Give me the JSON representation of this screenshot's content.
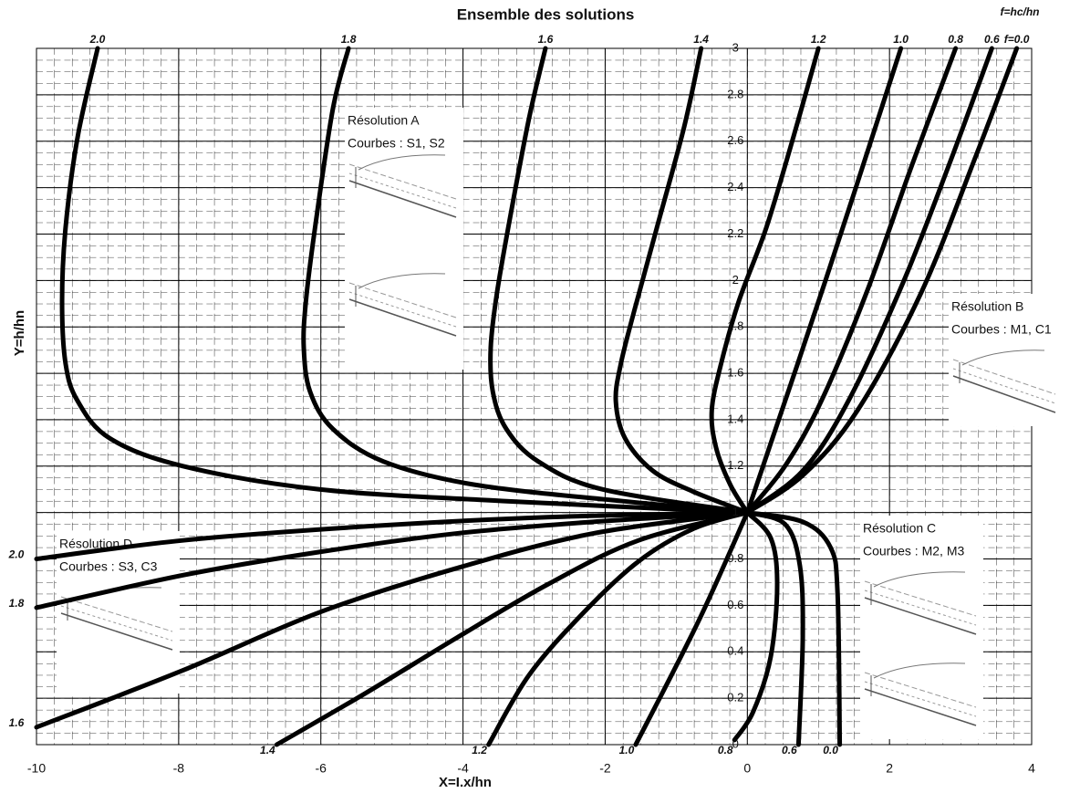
{
  "chart_data": {
    "type": "line",
    "title": "Ensemble des solutions",
    "x_label": "X=I.x/hn",
    "y_label": "Y=h/hn",
    "annotation": "f=hc/hn",
    "xlim": [
      -10,
      4
    ],
    "ylim": [
      0,
      3
    ],
    "xticks": [
      -10,
      -8,
      -6,
      -4,
      -2,
      0,
      2,
      4
    ],
    "yticks": [
      0,
      0.2,
      0.4,
      0.6,
      0.8,
      1,
      1.2,
      1.4,
      1.6,
      1.8,
      2,
      2.2,
      2.4,
      2.6,
      2.8,
      3
    ],
    "grid": true,
    "color": "#000000",
    "insets": [
      {
        "title": "Résolution A",
        "subtitle": "Courbes : S1, S2"
      },
      {
        "title": "Résolution B",
        "subtitle": "Courbes : M1, C1"
      },
      {
        "title": "Résolution C",
        "subtitle": "Courbes : M2, M3"
      },
      {
        "title": "Résolution D",
        "subtitle": "Courbes : S3, C3"
      }
    ],
    "series": [
      {
        "name": "2.0",
        "x": [
          -9.14,
          -9.42,
          -9.59,
          -9.64,
          -9.59,
          -9.42,
          -8.97,
          -7.94,
          -6.02,
          -3.45,
          0
        ],
        "values": [
          3,
          2.62,
          2.23,
          1.91,
          1.64,
          1.48,
          1.32,
          1.2,
          1.1,
          1.05,
          1
        ]
      },
      {
        "name": "1.8",
        "x": [
          -5.61,
          -5.83,
          -6.08,
          -6.21,
          -6.24,
          -6.15,
          -5.83,
          -5.12,
          -3.84,
          -1.78,
          0
        ],
        "values": [
          3,
          2.74,
          2.23,
          1.91,
          1.71,
          1.52,
          1.36,
          1.22,
          1.12,
          1.05,
          1
        ]
      },
      {
        "name": "1.6",
        "x": [
          -2.84,
          -3.07,
          -3.32,
          -3.52,
          -3.61,
          -3.58,
          -3.39,
          -2.94,
          -2.04,
          0
        ],
        "values": [
          3,
          2.7,
          2.3,
          1.95,
          1.71,
          1.52,
          1.36,
          1.22,
          1.1,
          1
        ]
      },
      {
        "name": "1.4",
        "x": [
          -0.65,
          -0.89,
          -1.27,
          -1.59,
          -1.78,
          -1.85,
          -1.72,
          -1.33,
          -0.76,
          0
        ],
        "values": [
          3,
          2.66,
          2.23,
          1.87,
          1.64,
          1.48,
          1.32,
          1.18,
          1.09,
          1
        ]
      },
      {
        "name": "1.2",
        "x": [
          1.0,
          0.65,
          0.27,
          -0.12,
          -0.37,
          -0.5,
          -0.44,
          -0.24,
          0
        ],
        "values": [
          3,
          2.62,
          2.23,
          1.91,
          1.64,
          1.44,
          1.28,
          1.12,
          1
        ]
      },
      {
        "name": "1.0",
        "x": [
          2.16,
          1.1,
          0
        ],
        "values": [
          3,
          2,
          1
        ]
      },
      {
        "name": "0.8",
        "x": [
          2.93,
          2.32,
          1.68,
          1.04,
          0.53,
          0
        ],
        "values": [
          3,
          2.5,
          1.95,
          1.48,
          1.2,
          1
        ]
      },
      {
        "name": "0.6",
        "x": [
          3.44,
          2.84,
          2.19,
          1.42,
          0.78,
          0
        ],
        "values": [
          3,
          2.5,
          1.99,
          1.48,
          1.18,
          1
        ]
      },
      {
        "name": "f=0.0",
        "x": [
          3.79,
          3.22,
          2.45,
          1.55,
          0.78,
          0
        ],
        "values": [
          3,
          2.54,
          1.95,
          1.44,
          1.16,
          1
        ]
      },
      {
        "name": "2.0",
        "x": [
          -10,
          -7.94,
          -5.38,
          -2.81,
          0
        ],
        "values": [
          0.8,
          0.88,
          0.94,
          0.98,
          1
        ]
      },
      {
        "name": "1.8",
        "x": [
          -10,
          -7.94,
          -6.02,
          -4.09,
          -2.17,
          0
        ],
        "values": [
          0.59,
          0.73,
          0.83,
          0.91,
          0.96,
          1
        ]
      },
      {
        "name": "1.6",
        "x": [
          -10,
          -7.94,
          -6.02,
          -4.09,
          -2.17,
          0
        ],
        "values": [
          0.075,
          0.32,
          0.57,
          0.76,
          0.91,
          1
        ]
      },
      {
        "name": "1.4",
        "x": [
          -6.62,
          -5.38,
          -4.09,
          -2.81,
          -1.53,
          0
        ],
        "values": [
          0,
          0.22,
          0.46,
          0.69,
          0.88,
          1
        ]
      },
      {
        "name": "1.2",
        "x": [
          -3.64,
          -3.07,
          -2.3,
          -1.53,
          -0.76,
          0
        ],
        "values": [
          0,
          0.3,
          0.57,
          0.79,
          0.93,
          1
        ]
      },
      {
        "name": "1.0",
        "x": [
          -1.57,
          -0.69,
          0
        ],
        "values": [
          0,
          0.53,
          1
        ]
      },
      {
        "name": "0.8",
        "x": [
          -0.18,
          0.08,
          0.33,
          0.42,
          0.33,
          0
        ],
        "values": [
          0.02,
          0.14,
          0.38,
          0.69,
          0.89,
          1
        ]
      },
      {
        "name": "0.6",
        "x": [
          0.72,
          0.78,
          0.74,
          0.53,
          0
        ],
        "values": [
          0,
          0.46,
          0.77,
          0.95,
          1
        ]
      },
      {
        "name": "0.0",
        "x": [
          1.3,
          1.27,
          1.17,
          0.78,
          0
        ],
        "values": [
          0,
          0.65,
          0.85,
          0.96,
          1
        ]
      }
    ]
  }
}
